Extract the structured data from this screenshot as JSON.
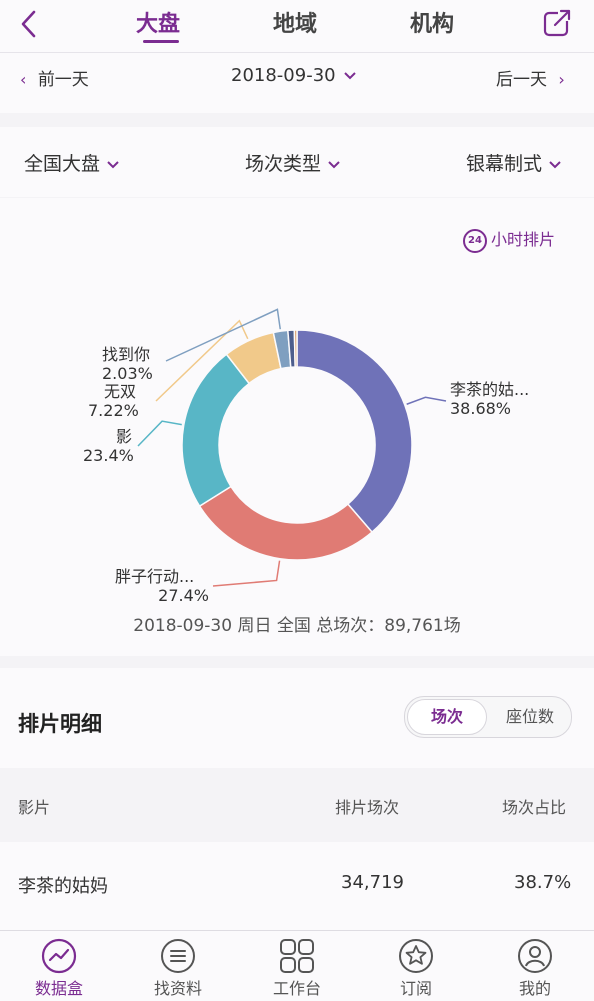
{
  "header": {
    "tabs": [
      {
        "label": "大盘",
        "active": true
      },
      {
        "label": "地域",
        "active": false
      },
      {
        "label": "机构",
        "active": false
      }
    ]
  },
  "date_nav": {
    "prev_label": "前一天",
    "date": "2018-09-30",
    "next_label": "后一天"
  },
  "filters": [
    "全国大盘",
    "场次类型",
    "银幕制式"
  ],
  "hourly_button": {
    "badge": "24",
    "label": "小时排片"
  },
  "chart_data": {
    "type": "pie",
    "style": "donut",
    "slices": [
      {
        "label": "李茶的姑...",
        "value": 38.68,
        "value_label": "38.68%",
        "color": "#6f72b8"
      },
      {
        "label": "胖子行动...",
        "value": 27.4,
        "value_label": "27.4%",
        "color": "#e07b74"
      },
      {
        "label": "影",
        "value": 23.4,
        "value_label": "23.4%",
        "color": "#58b6c6"
      },
      {
        "label": "无双",
        "value": 7.22,
        "value_label": "7.22%",
        "color": "#f1c98a"
      },
      {
        "label": "找到你",
        "value": 2.03,
        "value_label": "2.03%",
        "color": "#7f9fc0"
      },
      {
        "label": "",
        "value": 0.9,
        "color": "#4d5d8c"
      },
      {
        "label": "",
        "value": 0.37,
        "color": "#d79a6a"
      }
    ],
    "summary": "2018-09-30 周日 全国 总场次：89,761场"
  },
  "detail": {
    "title": "排片明细",
    "toggle": [
      "场次",
      "座位数"
    ],
    "columns": [
      "影片",
      "排片场次",
      "场次占比"
    ],
    "rows": [
      {
        "film": "李茶的姑妈",
        "shows": "34,719",
        "share": "38.7%"
      }
    ]
  },
  "bottom_nav": [
    {
      "label": "数据盒",
      "icon": "chart-circle-icon",
      "active": true
    },
    {
      "label": "找资料",
      "icon": "list-circle-icon",
      "active": false
    },
    {
      "label": "工作台",
      "icon": "grid-icon",
      "active": false
    },
    {
      "label": "订阅",
      "icon": "star-circle-icon",
      "active": false
    },
    {
      "label": "我的",
      "icon": "user-circle-icon",
      "active": false
    }
  ],
  "colors": {
    "accent": "#7b2c91"
  }
}
